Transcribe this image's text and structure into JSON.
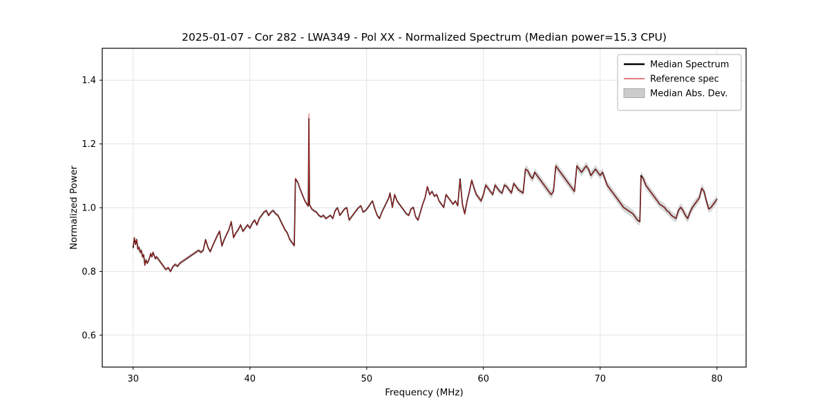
{
  "chart_data": {
    "type": "line",
    "title": "2025-01-07 - Cor 282 - LWA349 - Pol XX - Normalized Spectrum (Median power=15.3 CPU)",
    "xlabel": "Frequency (MHz)",
    "ylabel": "Normalized Power",
    "xlim": [
      27.35,
      82.5
    ],
    "ylim": [
      0.5,
      1.5
    ],
    "xticks": [
      30,
      40,
      50,
      60,
      70,
      80
    ],
    "yticks": [
      0.6,
      0.8,
      1.0,
      1.2,
      1.4
    ],
    "grid": true,
    "grid_color": "#e3e3e3",
    "frame_color": "#000000",
    "x": [
      30.0,
      30.1,
      30.2,
      30.3,
      30.4,
      30.5,
      30.6,
      30.7,
      30.8,
      30.9,
      31.0,
      31.1,
      31.2,
      31.3,
      31.4,
      31.5,
      31.6,
      31.7,
      31.8,
      31.9,
      32.0,
      32.2,
      32.4,
      32.6,
      32.8,
      33.0,
      33.2,
      33.4,
      33.6,
      33.8,
      34.0,
      34.2,
      34.4,
      34.6,
      34.8,
      35.0,
      35.2,
      35.4,
      35.6,
      35.8,
      36.0,
      36.2,
      36.4,
      36.6,
      36.8,
      37.0,
      37.2,
      37.4,
      37.6,
      37.8,
      38.0,
      38.2,
      38.4,
      38.6,
      38.8,
      39.0,
      39.2,
      39.4,
      39.6,
      39.8,
      40.0,
      40.2,
      40.4,
      40.6,
      40.8,
      41.0,
      41.2,
      41.4,
      41.6,
      41.8,
      42.0,
      42.2,
      42.4,
      42.6,
      42.8,
      43.0,
      43.2,
      43.4,
      43.6,
      43.8,
      43.9,
      44.1,
      44.3,
      44.5,
      44.7,
      44.9,
      45.0,
      45.05,
      45.1,
      45.3,
      45.5,
      45.7,
      45.9,
      46.1,
      46.3,
      46.5,
      46.7,
      46.9,
      47.1,
      47.3,
      47.5,
      47.7,
      47.9,
      48.1,
      48.3,
      48.5,
      48.7,
      48.9,
      49.1,
      49.3,
      49.5,
      49.7,
      49.9,
      50.1,
      50.3,
      50.5,
      50.7,
      50.9,
      51.1,
      51.3,
      51.5,
      51.7,
      51.9,
      52.0,
      52.2,
      52.4,
      52.6,
      52.8,
      53.0,
      53.2,
      53.4,
      53.6,
      53.8,
      54.0,
      54.2,
      54.4,
      54.6,
      54.8,
      55.0,
      55.2,
      55.4,
      55.6,
      55.8,
      56.0,
      56.2,
      56.4,
      56.6,
      56.8,
      57.0,
      57.2,
      57.4,
      57.6,
      57.8,
      58.0,
      58.2,
      58.4,
      58.6,
      58.8,
      59.0,
      59.2,
      59.4,
      59.6,
      59.8,
      60.0,
      60.2,
      60.4,
      60.6,
      60.8,
      61.0,
      61.2,
      61.4,
      61.6,
      61.8,
      62.0,
      62.2,
      62.4,
      62.6,
      62.8,
      63.0,
      63.2,
      63.4,
      63.6,
      63.8,
      64.0,
      64.2,
      64.4,
      64.6,
      64.8,
      65.0,
      65.2,
      65.4,
      65.6,
      65.8,
      66.0,
      66.2,
      66.4,
      66.6,
      66.8,
      67.0,
      67.2,
      67.4,
      67.6,
      67.8,
      68.0,
      68.2,
      68.4,
      68.6,
      68.8,
      69.0,
      69.2,
      69.4,
      69.6,
      69.8,
      70.0,
      70.2,
      70.4,
      70.6,
      70.8,
      71.0,
      71.2,
      71.4,
      71.6,
      71.8,
      72.0,
      72.2,
      72.4,
      72.6,
      72.8,
      73.0,
      73.2,
      73.4,
      73.5,
      73.7,
      73.9,
      74.1,
      74.3,
      74.5,
      74.7,
      74.9,
      75.1,
      75.3,
      75.5,
      75.7,
      75.9,
      76.1,
      76.3,
      76.5,
      76.7,
      76.9,
      77.1,
      77.3,
      77.5,
      77.7,
      77.9,
      78.1,
      78.3,
      78.5,
      78.7,
      78.9,
      79.1,
      79.3,
      79.5,
      79.7,
      79.9,
      80.0
    ],
    "series": [
      {
        "name": "Median Spectrum",
        "color": "#000000",
        "width": 1.7,
        "values": [
          0.875,
          0.905,
          0.885,
          0.9,
          0.87,
          0.876,
          0.86,
          0.866,
          0.846,
          0.852,
          0.82,
          0.836,
          0.826,
          0.832,
          0.842,
          0.856,
          0.846,
          0.86,
          0.85,
          0.84,
          0.846,
          0.836,
          0.826,
          0.816,
          0.806,
          0.812,
          0.8,
          0.815,
          0.822,
          0.816,
          0.826,
          0.831,
          0.836,
          0.841,
          0.846,
          0.851,
          0.856,
          0.861,
          0.866,
          0.86,
          0.866,
          0.9,
          0.876,
          0.862,
          0.88,
          0.896,
          0.912,
          0.926,
          0.88,
          0.9,
          0.916,
          0.931,
          0.956,
          0.906,
          0.921,
          0.931,
          0.946,
          0.926,
          0.936,
          0.946,
          0.936,
          0.951,
          0.961,
          0.946,
          0.966,
          0.976,
          0.986,
          0.991,
          0.976,
          0.986,
          0.991,
          0.981,
          0.976,
          0.961,
          0.946,
          0.931,
          0.921,
          0.901,
          0.891,
          0.881,
          1.09,
          1.08,
          1.058,
          1.04,
          1.022,
          1.01,
          1.005,
          1.28,
          1.01,
          0.996,
          0.99,
          0.986,
          0.976,
          0.971,
          0.976,
          0.966,
          0.971,
          0.976,
          0.966,
          0.991,
          1.0,
          0.976,
          0.986,
          0.996,
          1.0,
          0.961,
          0.971,
          0.981,
          0.991,
          1.0,
          1.006,
          0.986,
          0.991,
          1.0,
          1.011,
          1.021,
          0.996,
          0.976,
          0.966,
          0.986,
          1.001,
          1.016,
          1.031,
          1.046,
          1.001,
          1.041,
          1.021,
          1.011,
          1.001,
          0.991,
          0.981,
          0.976,
          0.996,
          1.001,
          0.971,
          0.961,
          0.986,
          1.011,
          1.031,
          1.066,
          1.041,
          1.051,
          1.036,
          1.041,
          1.021,
          1.011,
          1.001,
          1.041,
          1.031,
          1.021,
          1.011,
          1.021,
          1.006,
          1.09,
          1.011,
          0.981,
          1.021,
          1.051,
          1.086,
          1.061,
          1.041,
          1.031,
          1.021,
          1.041,
          1.071,
          1.061,
          1.051,
          1.041,
          1.071,
          1.061,
          1.051,
          1.046,
          1.071,
          1.066,
          1.056,
          1.046,
          1.076,
          1.066,
          1.056,
          1.051,
          1.046,
          1.121,
          1.116,
          1.101,
          1.091,
          1.111,
          1.101,
          1.091,
          1.081,
          1.071,
          1.061,
          1.051,
          1.041,
          1.051,
          1.131,
          1.121,
          1.111,
          1.101,
          1.091,
          1.081,
          1.071,
          1.061,
          1.051,
          1.131,
          1.121,
          1.111,
          1.121,
          1.131,
          1.121,
          1.101,
          1.111,
          1.121,
          1.111,
          1.101,
          1.111,
          1.091,
          1.071,
          1.061,
          1.051,
          1.041,
          1.031,
          1.021,
          1.011,
          1.001,
          0.996,
          0.991,
          0.986,
          0.981,
          0.971,
          0.961,
          0.956,
          1.101,
          1.091,
          1.071,
          1.061,
          1.051,
          1.041,
          1.031,
          1.021,
          1.011,
          1.006,
          1.001,
          0.991,
          0.986,
          0.976,
          0.971,
          0.966,
          0.991,
          1.001,
          0.991,
          0.976,
          0.966,
          0.986,
          1.001,
          1.011,
          1.021,
          1.031,
          1.061,
          1.051,
          1.021,
          0.996,
          1.001,
          1.011,
          1.021,
          1.026
        ]
      },
      {
        "name": "Reference spec",
        "color": "#d62f2f",
        "width": 0.9,
        "opacity": 0.9,
        "values_same_as": 0,
        "overrides": {
          "87": 1.295,
          "0": 0.88,
          "80": 1.093,
          "153": 1.086,
          "231": 1.097
        }
      }
    ],
    "band": {
      "name": "Median Abs. Dev.",
      "color": "#aaaaaa",
      "opacity": 0.45,
      "halfwidth_segments": [
        [
          29.9,
          31.0,
          0.009
        ],
        [
          31.0,
          43.8,
          0.006
        ],
        [
          43.8,
          58.0,
          0.005
        ],
        [
          58.0,
          63.4,
          0.009
        ],
        [
          63.4,
          80.1,
          0.013
        ]
      ]
    },
    "legend": {
      "position": "top-right",
      "items": [
        {
          "label": "Median Spectrum",
          "swatch": "line",
          "color": "#000000",
          "lw": 2.4
        },
        {
          "label": "Reference spec",
          "swatch": "line",
          "color": "#d62f2f",
          "lw": 1.3
        },
        {
          "label": "Median Abs. Dev.",
          "swatch": "band",
          "color": "#cccccc"
        }
      ]
    }
  }
}
